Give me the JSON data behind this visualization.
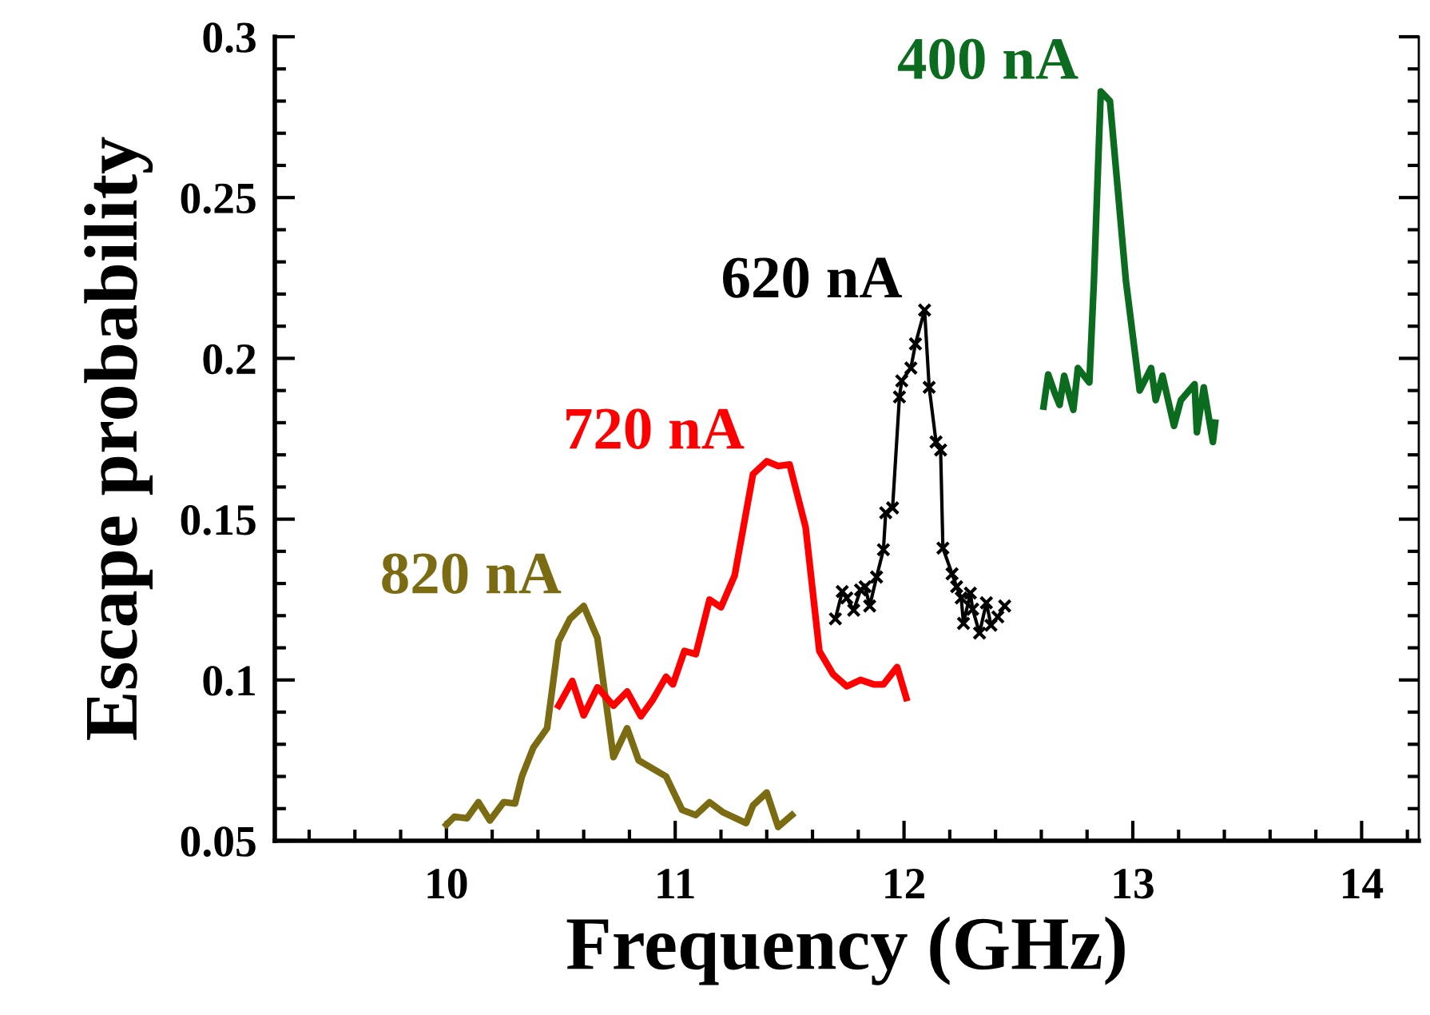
{
  "chart_data": {
    "type": "line",
    "xlabel": "Frequency (GHz)",
    "ylabel": "Escape probability",
    "xlim": [
      9.25,
      14.25
    ],
    "ylim": [
      0.05,
      0.3
    ],
    "legend": false,
    "grid": false,
    "xticks": [
      {
        "value": 9.4,
        "label": null
      },
      {
        "value": 9.6,
        "label": null
      },
      {
        "value": 9.8,
        "label": null
      },
      10,
      {
        "value": 10.2,
        "label": null
      },
      {
        "value": 10.4,
        "label": null
      },
      {
        "value": 10.6,
        "label": null
      },
      {
        "value": 10.8,
        "label": null
      },
      11,
      {
        "value": 11.2,
        "label": null
      },
      {
        "value": 11.4,
        "label": null
      },
      {
        "value": 11.6,
        "label": null
      },
      {
        "value": 11.8,
        "label": null
      },
      12,
      {
        "value": 12.2,
        "label": null
      },
      {
        "value": 12.4,
        "label": null
      },
      {
        "value": 12.6,
        "label": null
      },
      {
        "value": 12.8,
        "label": null
      },
      13,
      {
        "value": 13.2,
        "label": null
      },
      {
        "value": 13.4,
        "label": null
      },
      {
        "value": 13.6,
        "label": null
      },
      {
        "value": 13.8,
        "label": null
      },
      14,
      {
        "value": 14.2,
        "label": null
      }
    ],
    "yticks": [
      0.05,
      {
        "value": 0.06,
        "label": null
      },
      {
        "value": 0.07,
        "label": null
      },
      {
        "value": 0.08,
        "label": null
      },
      {
        "value": 0.09,
        "label": null
      },
      0.1,
      {
        "value": 0.11,
        "label": null
      },
      {
        "value": 0.12,
        "label": null
      },
      {
        "value": 0.13,
        "label": null
      },
      {
        "value": 0.14,
        "label": null
      },
      0.15,
      {
        "value": 0.16,
        "label": null
      },
      {
        "value": 0.17,
        "label": null
      },
      {
        "value": 0.18,
        "label": null
      },
      {
        "value": 0.19,
        "label": null
      },
      0.2,
      {
        "value": 0.21,
        "label": null
      },
      {
        "value": 0.22,
        "label": null
      },
      {
        "value": 0.23,
        "label": null
      },
      {
        "value": 0.24,
        "label": null
      },
      0.25,
      {
        "value": 0.26,
        "label": null
      },
      {
        "value": 0.27,
        "label": null
      },
      {
        "value": 0.28,
        "label": null
      },
      {
        "value": 0.29,
        "label": null
      },
      0.3
    ],
    "series": [
      {
        "name": "820 nA",
        "color": "#7b6b12",
        "marker": "none",
        "x": [
          10.0,
          10.035,
          10.09,
          10.14,
          10.19,
          10.25,
          10.3,
          10.33,
          10.38,
          10.44,
          10.49,
          10.54,
          10.6,
          10.66,
          10.73,
          10.79,
          10.84,
          10.96,
          11.03,
          11.09,
          11.15,
          11.21,
          11.31,
          11.34,
          11.4,
          11.45,
          11.51
        ],
        "values": [
          0.055,
          0.0575,
          0.057,
          0.062,
          0.0563,
          0.062,
          0.0616,
          0.07,
          0.079,
          0.085,
          0.112,
          0.119,
          0.123,
          0.113,
          0.076,
          0.085,
          0.075,
          0.07,
          0.0596,
          0.058,
          0.062,
          0.0588,
          0.0555,
          0.061,
          0.065,
          0.0543,
          0.058
        ]
      },
      {
        "name": "720 nA",
        "color": "#ff0000",
        "marker": "none",
        "x": [
          10.49,
          10.55,
          10.6,
          10.66,
          10.73,
          10.79,
          10.85,
          10.9,
          10.96,
          10.99,
          11.04,
          11.09,
          11.15,
          11.2,
          11.26,
          11.34,
          11.4,
          11.45,
          11.5,
          11.57,
          11.63,
          11.69,
          11.75,
          11.81,
          11.87,
          11.91,
          11.97,
          12.01
        ],
        "values": [
          0.092,
          0.0997,
          0.089,
          0.0977,
          0.092,
          0.0964,
          0.0887,
          0.0936,
          0.101,
          0.0986,
          0.109,
          0.108,
          0.125,
          0.1226,
          0.1325,
          0.164,
          0.168,
          0.1665,
          0.167,
          0.1475,
          0.109,
          0.1018,
          0.098,
          0.1,
          0.0986,
          0.0986,
          0.104,
          0.0944
        ]
      },
      {
        "name": "620 nA",
        "color": "#000000",
        "marker": "cross",
        "x": [
          11.7,
          11.73,
          11.75,
          11.78,
          11.81,
          11.83,
          11.85,
          11.88,
          11.91,
          11.92,
          11.95,
          11.98,
          11.99,
          12.03,
          12.05,
          12.09,
          12.11,
          12.14,
          12.16,
          12.17,
          12.21,
          12.23,
          12.25,
          12.26,
          12.29,
          12.3,
          12.33,
          12.36,
          12.38,
          12.41,
          12.44
        ],
        "values": [
          0.119,
          0.1275,
          0.1255,
          0.1217,
          0.128,
          0.129,
          0.123,
          0.132,
          0.1405,
          0.152,
          0.1535,
          0.188,
          0.193,
          0.197,
          0.2045,
          0.215,
          0.191,
          0.174,
          0.1715,
          0.141,
          0.133,
          0.129,
          0.1255,
          0.1176,
          0.127,
          0.122,
          0.1146,
          0.124,
          0.117,
          0.1196,
          0.123
        ]
      },
      {
        "name": "400 nA",
        "color": "#0b6b1e",
        "marker": "none",
        "x": [
          12.61,
          12.63,
          12.66,
          12.68,
          12.7,
          12.74,
          12.76,
          12.81,
          12.83,
          12.86,
          12.9,
          12.97,
          13.03,
          13.08,
          13.1,
          13.13,
          13.18,
          13.21,
          13.27,
          13.28,
          13.31,
          13.35,
          13.36
        ],
        "values": [
          0.185,
          0.195,
          0.189,
          0.1855,
          0.1946,
          0.184,
          0.197,
          0.1925,
          0.224,
          0.283,
          0.28,
          0.224,
          0.19,
          0.197,
          0.187,
          0.1946,
          0.179,
          0.187,
          0.192,
          0.177,
          0.191,
          0.174,
          0.18
        ]
      }
    ]
  }
}
